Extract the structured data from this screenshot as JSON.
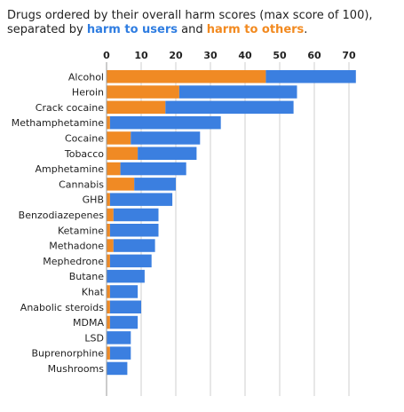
{
  "title": {
    "line1": "Drugs ordered by their overall harm scores (max score of 100),",
    "line2_prefix": "separated by ",
    "users_label": "harm to users",
    "and_text": " and ",
    "others_label": "harm to others",
    "suffix": "."
  },
  "colors": {
    "users": "#3b7fe0",
    "others": "#f08a24",
    "grid": "#cfcfcf"
  },
  "chart_data": {
    "type": "bar",
    "orientation": "horizontal",
    "stacked": true,
    "xlim": [
      0,
      70
    ],
    "xticks": [
      0,
      10,
      20,
      30,
      40,
      50,
      60,
      70
    ],
    "grid": true,
    "categories": [
      "Alcohol",
      "Heroin",
      "Crack cocaine",
      "Methamphetamine",
      "Cocaine",
      "Tobacco",
      "Amphetamine",
      "Cannabis",
      "GHB",
      "Benzodiazepenes",
      "Ketamine",
      "Methadone",
      "Mephedrone",
      "Butane",
      "Khat",
      "Anabolic steroids",
      "MDMA",
      "LSD",
      "Buprenorphine",
      "Mushrooms"
    ],
    "series": [
      {
        "name": "harm to others",
        "values": [
          46,
          21,
          17,
          1,
          7,
          9,
          4,
          8,
          1,
          2,
          1,
          2,
          1,
          0,
          1,
          1,
          1,
          0,
          1,
          0
        ]
      },
      {
        "name": "harm to users",
        "values": [
          26,
          34,
          37,
          32,
          20,
          17,
          19,
          12,
          18,
          13,
          14,
          12,
          12,
          11,
          8,
          9,
          8,
          7,
          6,
          6
        ]
      }
    ]
  }
}
